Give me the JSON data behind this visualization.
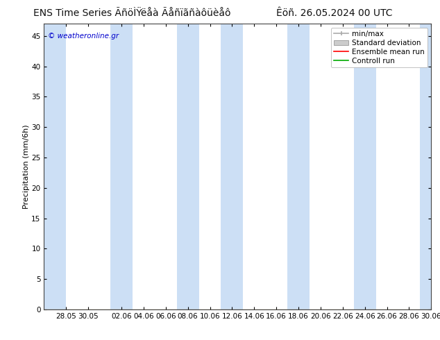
{
  "title_left": "ENS Time Series ÃñöÌŸëåà Ãåñïãñàôüèåô",
  "title_right": "Êöñ. 26.05.2024 00 UTC",
  "ylabel": "Precipitation (mm/6h)",
  "ylim": [
    0,
    47
  ],
  "yticks": [
    0,
    5,
    10,
    15,
    20,
    25,
    30,
    35,
    40,
    45
  ],
  "background_color": "#ffffff",
  "plot_bg_color": "#ffffff",
  "shaded_band_color": "#ccdff5",
  "watermark_text": "© weatheronline.gr",
  "watermark_color": "#0000cc",
  "legend_labels": [
    "min/max",
    "Standard deviation",
    "Ensemble mean run",
    "Controll run"
  ],
  "minmax_color": "#aaaaaa",
  "stddev_color": "#cccccc",
  "mean_color": "#ff0000",
  "control_color": "#00aa00",
  "xtick_labels": [
    "28.05",
    "30.05",
    "02.06",
    "04.06",
    "06.06",
    "08.06",
    "10.06",
    "12.06",
    "14.06",
    "16.06",
    "18.06",
    "20.06",
    "22.06",
    "24.06",
    "26.06",
    "28.06",
    "30.06"
  ],
  "xtick_positions": [
    2,
    4,
    7,
    9,
    11,
    13,
    15,
    17,
    19,
    21,
    23,
    25,
    27,
    29,
    31,
    33,
    35
  ],
  "xlim": [
    0,
    35
  ],
  "shaded_ranges": [
    [
      0,
      2
    ],
    [
      6,
      8
    ],
    [
      12,
      14
    ],
    [
      16,
      18
    ],
    [
      22,
      24
    ],
    [
      28,
      30
    ],
    [
      34,
      35
    ]
  ],
  "title_fontsize": 10,
  "axis_fontsize": 8,
  "tick_fontsize": 7.5,
  "legend_fontsize": 7.5
}
